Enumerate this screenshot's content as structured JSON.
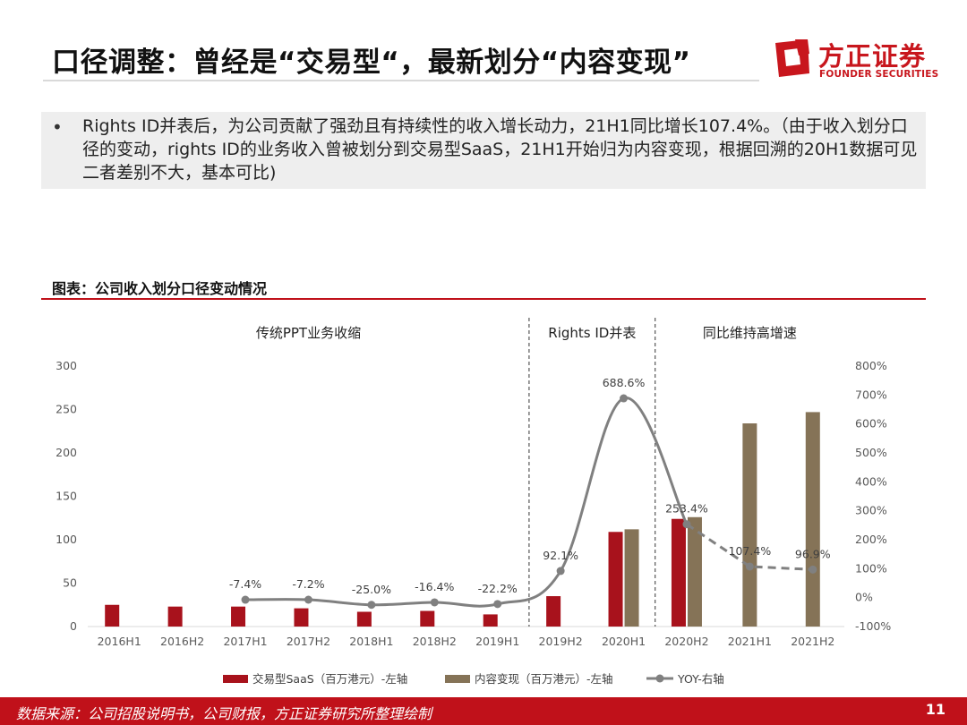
{
  "header": {
    "title": "口径调整：曾经是“交易型“，最新划分“内容变现”",
    "logo_cn": "方正证券",
    "logo_en": "FOUNDER SECURITIES"
  },
  "bullet": {
    "marker": "•",
    "text": "Rights ID并表后，为公司贡献了强劲且有持续性的收入增长动力，21H1同比增长107.4%。（由于收入划分口径的变动，rights ID的业务收入曾被划分到交易型SaaS，21H1开始归为内容变现，根据回溯的20H1数据可见二者差别不大，基本可比)"
  },
  "chart_title": "图表：公司收入划分口径变动情况",
  "colors": {
    "brand_red": "#c0111a",
    "saas_bar": "#a8121c",
    "content_bar": "#857357",
    "yoy_line": "#808080"
  },
  "chart_data": {
    "type": "bar",
    "categories": [
      "2016H1",
      "2016H2",
      "2017H1",
      "2017H2",
      "2018H1",
      "2018H2",
      "2019H1",
      "2019H2",
      "2020H1",
      "2020H2",
      "2021H1",
      "2021H2"
    ],
    "series": [
      {
        "name": "交易型SaaS（百万港元）-左轴",
        "axis": "left",
        "kind": "bar",
        "values": [
          25,
          23,
          23,
          21,
          17,
          18,
          14,
          35,
          109,
          124,
          null,
          null
        ]
      },
      {
        "name": "内容变现（百万港元）-左轴",
        "axis": "left",
        "kind": "bar",
        "values": [
          null,
          null,
          null,
          null,
          null,
          null,
          null,
          null,
          112,
          126,
          234,
          247
        ]
      },
      {
        "name": "YOY-右轴",
        "axis": "right",
        "kind": "line",
        "values": [
          null,
          null,
          -7.4,
          -7.2,
          -25.0,
          -16.4,
          -22.2,
          92.1,
          688.6,
          253.4,
          107.4,
          96.9
        ],
        "labels": [
          null,
          null,
          "-7.4%",
          "-7.2%",
          "-25.0%",
          "-16.4%",
          "-22.2%",
          "92.1%",
          "688.6%",
          "253.4%",
          "107.4%",
          "96.9%"
        ],
        "dashed_from_index": 9
      }
    ],
    "y_left": {
      "min": 0,
      "max": 300,
      "ticks": [
        "0",
        "50",
        "100",
        "150",
        "200",
        "250",
        "300"
      ]
    },
    "y_right": {
      "min": -100,
      "max": 800,
      "ticks": [
        "-100%",
        "0%",
        "100%",
        "200%",
        "300%",
        "400%",
        "500%",
        "600%",
        "700%",
        "800%"
      ]
    },
    "segments": [
      {
        "label": "传统PPT业务收缩",
        "from_index": 0,
        "to_index": 6
      },
      {
        "label": "Rights ID并表",
        "from_index": 7,
        "to_index": 8
      },
      {
        "label": "同比维持高增速",
        "from_index": 9,
        "to_index": 11
      }
    ],
    "dividers_after_index": [
      6,
      8
    ],
    "legend_position": "bottom",
    "grid": false
  },
  "footer": {
    "source": "数据来源：公司招股说明书，公司财报，方正证券研究所整理绘制",
    "page": "11"
  }
}
